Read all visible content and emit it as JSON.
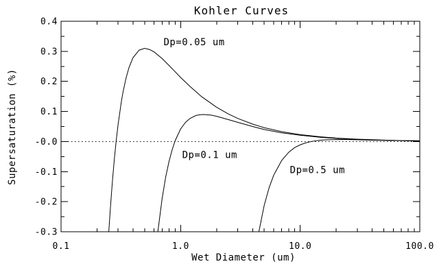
{
  "chart_data": {
    "type": "line",
    "title": "Kohler Curves",
    "xlabel": "Wet Diameter (um)",
    "ylabel": "Supersaturation (%)",
    "x_scale": "log",
    "xlim": [
      0.1,
      100.0
    ],
    "ylim": [
      -0.3,
      0.4
    ],
    "grid": "off",
    "line_color": "#000000",
    "background": "#ffffff",
    "x_ticks": [
      {
        "value": 0.1,
        "label": "0.1"
      },
      {
        "value": 1.0,
        "label": "1.0"
      },
      {
        "value": 10.0,
        "label": "10.0"
      },
      {
        "value": 100.0,
        "label": "100.0"
      }
    ],
    "y_ticks": [
      {
        "value": 0.4,
        "label": "0.4"
      },
      {
        "value": 0.3,
        "label": "0.3"
      },
      {
        "value": 0.2,
        "label": "0.2"
      },
      {
        "value": 0.1,
        "label": "0.1"
      },
      {
        "value": 0.0,
        "label": "-0.0"
      },
      {
        "value": -0.1,
        "label": "-0.1"
      },
      {
        "value": -0.2,
        "label": "-0.2"
      },
      {
        "value": -0.3,
        "label": "-0.3"
      }
    ],
    "y_minor_ticks": [
      0.35,
      0.25,
      0.15,
      0.05,
      -0.05,
      -0.15,
      -0.25
    ],
    "x_minor_multiples": [
      2,
      3,
      4,
      5,
      6,
      7,
      8,
      9
    ],
    "zero_line": {
      "value": 0.0,
      "style": "dotted"
    },
    "series": [
      {
        "name": "Dp=0.05 um",
        "dry_diameter_um": 0.05,
        "peak": {
          "wet_diameter_um": 0.5,
          "supersaturation_pct": 0.31
        },
        "points": [
          [
            0.2507,
            -0.3
          ],
          [
            0.26,
            -0.208
          ],
          [
            0.27,
            -0.123
          ],
          [
            0.28,
            -0.052
          ],
          [
            0.29,
            0.007
          ],
          [
            0.3,
            0.057
          ],
          [
            0.32,
            0.135
          ],
          [
            0.33,
            0.165
          ],
          [
            0.35,
            0.212
          ],
          [
            0.37,
            0.246
          ],
          [
            0.4,
            0.279
          ],
          [
            0.45,
            0.304
          ],
          [
            0.5,
            0.31
          ],
          [
            0.55,
            0.306
          ],
          [
            0.6,
            0.298
          ],
          [
            0.7,
            0.276
          ],
          [
            0.8,
            0.253
          ],
          [
            0.9,
            0.232
          ],
          [
            1.0,
            0.213
          ],
          [
            1.2,
            0.183
          ],
          [
            1.5,
            0.149
          ],
          [
            2.0,
            0.114
          ],
          [
            2.5,
            0.092
          ],
          [
            3.0,
            0.077
          ],
          [
            4.0,
            0.058
          ],
          [
            5.0,
            0.046
          ],
          [
            7.0,
            0.033
          ],
          [
            10,
            0.023
          ],
          [
            15,
            0.0155
          ],
          [
            20,
            0.0116
          ],
          [
            30,
            0.0077
          ],
          [
            50,
            0.0047
          ],
          [
            70,
            0.0033
          ],
          [
            100,
            0.0023
          ]
        ]
      },
      {
        "name": "Dp=0.1 um",
        "dry_diameter_um": 0.1,
        "peak": {
          "wet_diameter_um": 1.55,
          "supersaturation_pct": 0.09
        },
        "points": [
          [
            0.645,
            -0.3
          ],
          [
            0.7,
            -0.19
          ],
          [
            0.75,
            -0.118
          ],
          [
            0.8,
            -0.066
          ],
          [
            0.85,
            -0.027
          ],
          [
            0.9,
            0.003
          ],
          [
            1.0,
            0.042
          ],
          [
            1.1,
            0.064
          ],
          [
            1.2,
            0.077
          ],
          [
            1.35,
            0.087
          ],
          [
            1.45,
            0.089
          ],
          [
            1.55,
            0.09
          ],
          [
            1.65,
            0.089
          ],
          [
            1.8,
            0.088
          ],
          [
            2.0,
            0.084
          ],
          [
            2.5,
            0.073
          ],
          [
            3.0,
            0.064
          ],
          [
            4.0,
            0.05
          ],
          [
            5.0,
            0.04
          ],
          [
            7.0,
            0.029
          ],
          [
            10,
            0.021
          ],
          [
            15,
            0.0139
          ],
          [
            20,
            0.0105
          ],
          [
            30,
            0.007
          ],
          [
            50,
            0.0042
          ],
          [
            70,
            0.003
          ],
          [
            100,
            0.0021
          ]
        ]
      },
      {
        "name": "Dp=0.5 um",
        "dry_diameter_um": 0.5,
        "peak": {
          "wet_diameter_um": 21.0,
          "supersaturation_pct": 0.007
        },
        "points": [
          [
            4.51,
            -0.3
          ],
          [
            5.0,
            -0.212
          ],
          [
            5.5,
            -0.153
          ],
          [
            6.0,
            -0.112
          ],
          [
            7.0,
            -0.063
          ],
          [
            8.0,
            -0.036
          ],
          [
            9.0,
            -0.02
          ],
          [
            10,
            -0.011
          ],
          [
            11,
            -0.005
          ],
          [
            12.3,
            0.0
          ],
          [
            14,
            0.0034
          ],
          [
            16,
            0.0054
          ],
          [
            18,
            0.0062
          ],
          [
            21,
            0.0066
          ],
          [
            25,
            0.0064
          ],
          [
            30,
            0.0058
          ],
          [
            40,
            0.0048
          ],
          [
            50,
            0.004
          ],
          [
            70,
            0.0029
          ],
          [
            100,
            0.0021
          ]
        ]
      }
    ],
    "annotations": [
      {
        "text": "Dp=0.05 um",
        "x_um": 0.72,
        "y_pct": 0.332
      },
      {
        "text": "Dp=0.1 um",
        "x_um": 1.03,
        "y_pct": -0.043
      },
      {
        "text": "Dp=0.5 um",
        "x_um": 8.2,
        "y_pct": -0.094
      }
    ]
  }
}
